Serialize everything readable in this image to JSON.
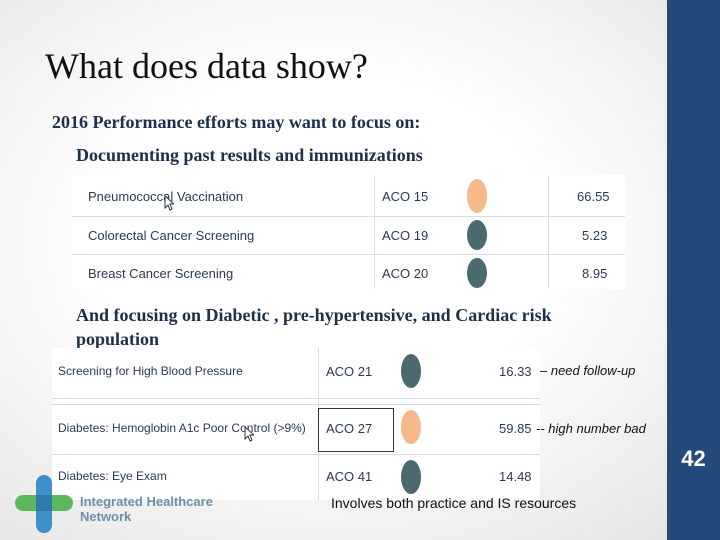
{
  "slide": {
    "title": "What does data show?",
    "subtitle": "2016 Performance efforts may want to focus on:",
    "section1": "Documenting past results and immunizations",
    "section2": "And focusing on Diabetic , pre-hypertensive, and Cardiac risk population",
    "page_number": "42",
    "footer_note": "Involves both practice and IS resources"
  },
  "colors": {
    "sidebar": "#234a7a",
    "dot_orange": "#f5b98a",
    "dot_teal": "#4a6a6f"
  },
  "table1": {
    "rows": [
      {
        "measure": "Pneumococcal Vaccination",
        "aco": "ACO 15",
        "status": "orange",
        "value": "66.55"
      },
      {
        "measure": "Colorectal Cancer Screening",
        "aco": "ACO 19",
        "status": "teal",
        "value": "5.23"
      },
      {
        "measure": "Breast Cancer Screening",
        "aco": "ACO 20",
        "status": "teal",
        "value": "8.95"
      }
    ]
  },
  "table2": {
    "rows": [
      {
        "measure": "Screening for High Blood Pressure",
        "aco": "ACO 21",
        "status": "teal",
        "value": "16.33",
        "note": "– need follow-up"
      },
      {
        "measure": "Diabetes: Hemoglobin A1c Poor Control (>9%)",
        "aco": "ACO 27",
        "status": "orange",
        "value": "59.85",
        "note": "-- high number bad"
      },
      {
        "measure": "Diabetes: Eye Exam",
        "aco": "ACO 41",
        "status": "teal",
        "value": "14.48",
        "note": ""
      }
    ]
  },
  "logo": {
    "line1": "Integrated Healthcare",
    "line2": "Network"
  }
}
